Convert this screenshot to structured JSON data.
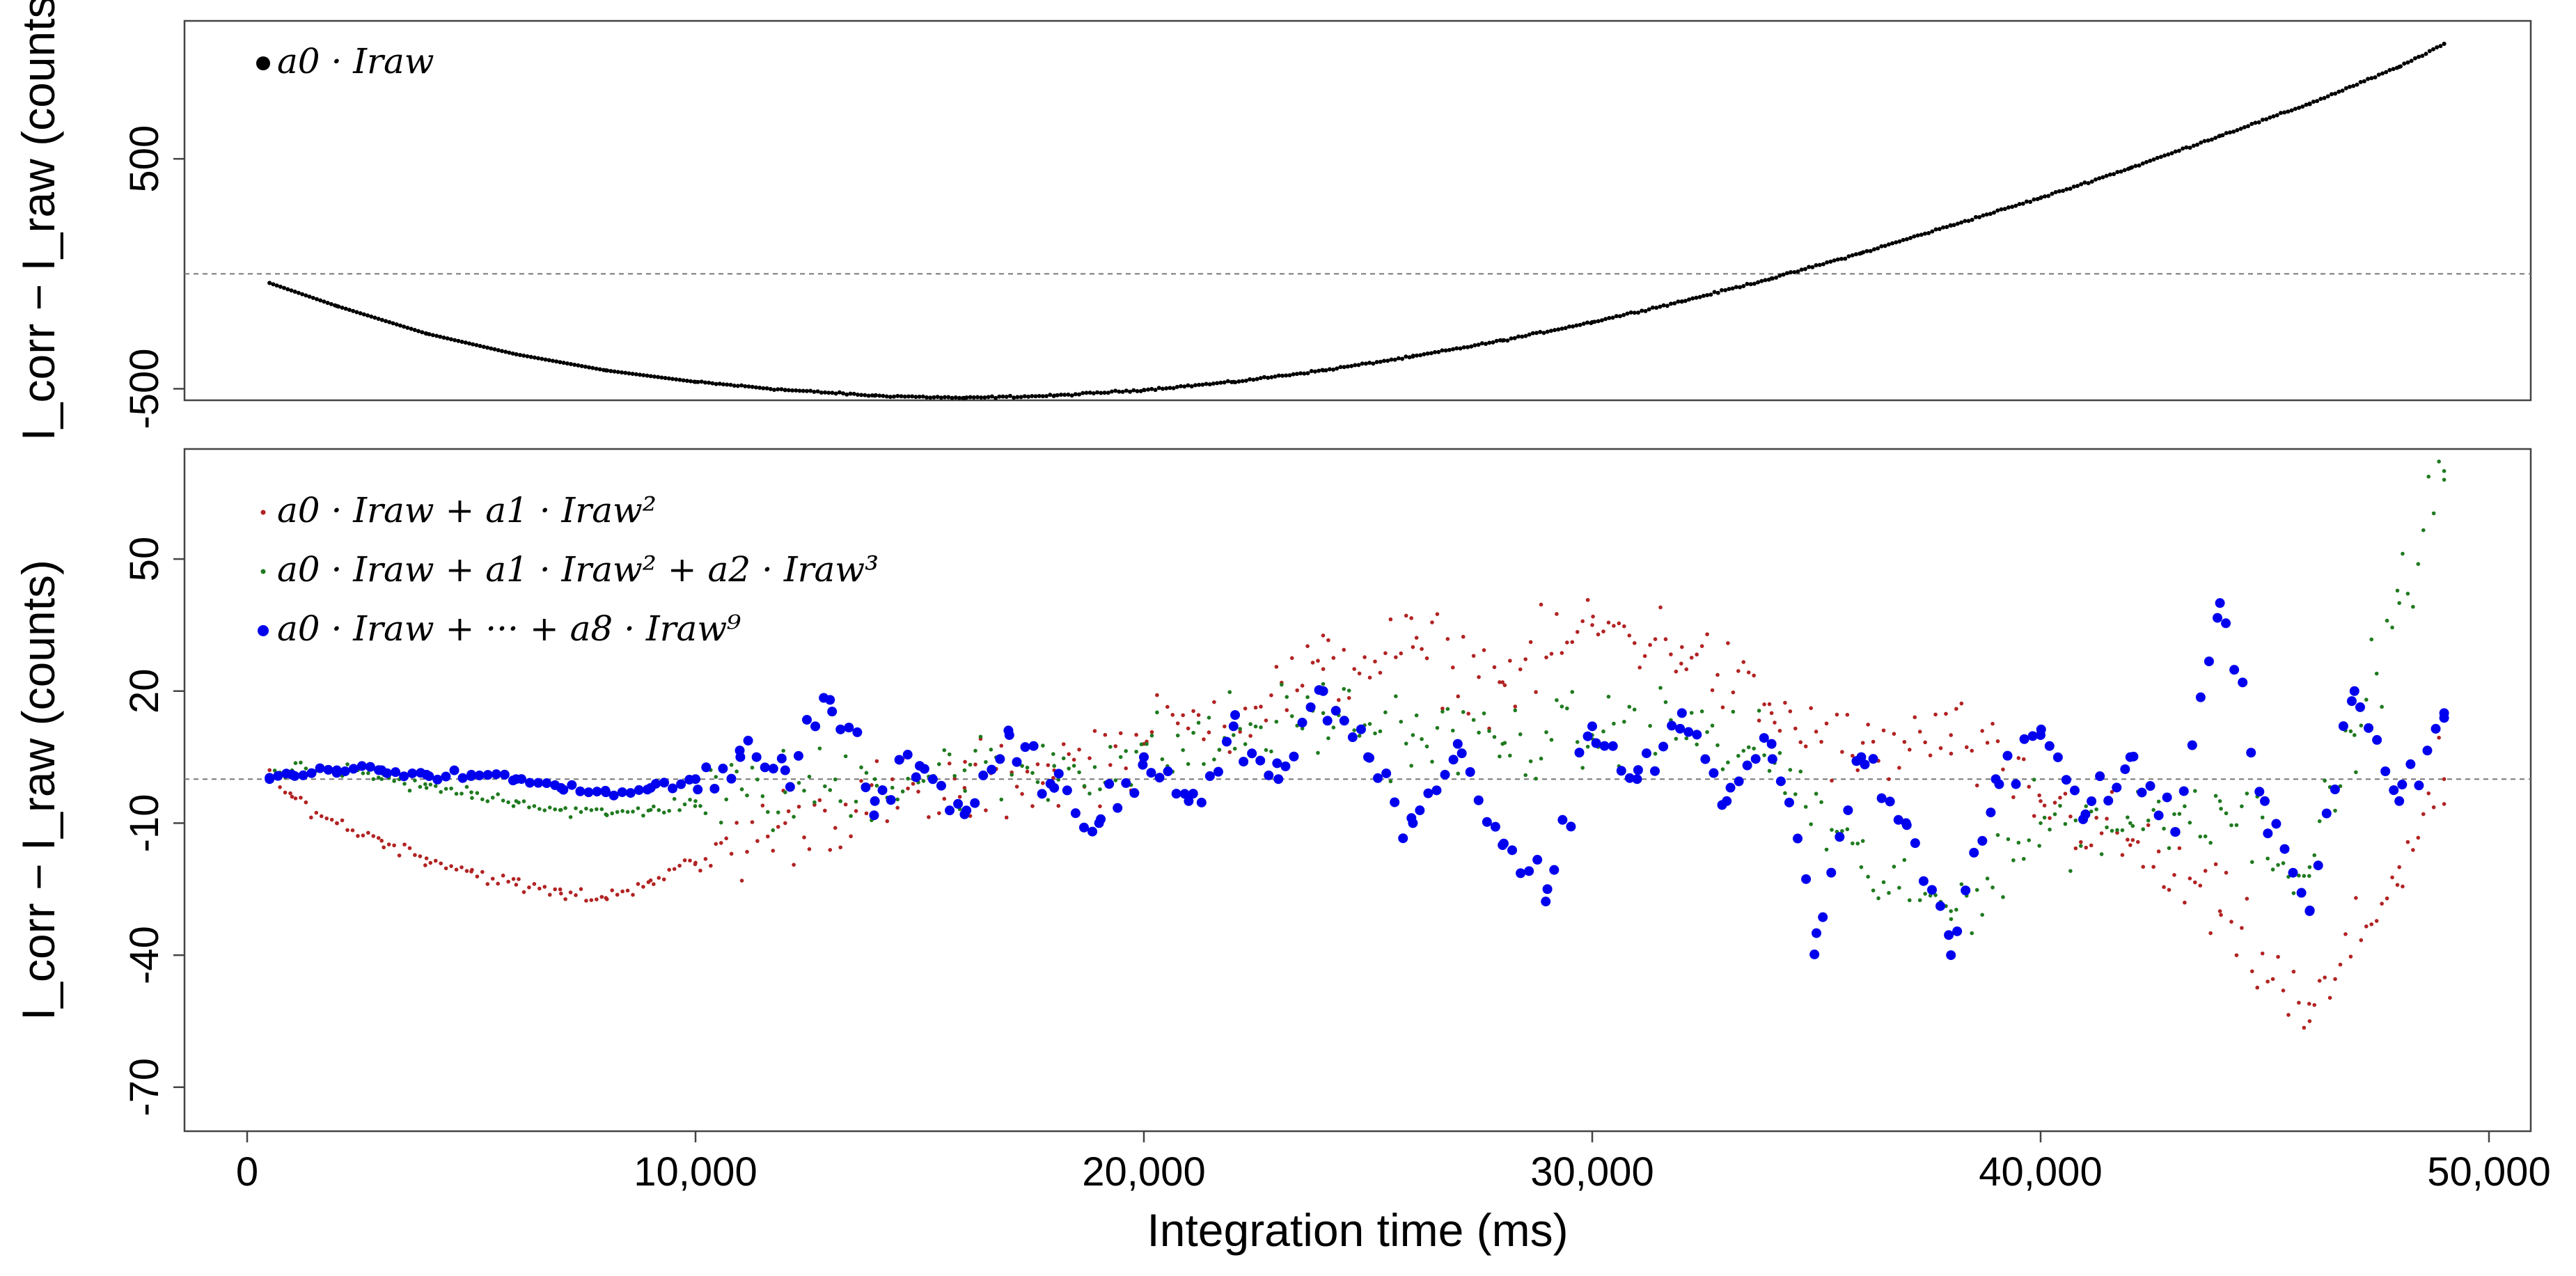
{
  "chart_data": [
    {
      "type": "scatter",
      "panel": "top",
      "ylabel": "I_corr − I_raw (counts)",
      "xlabel": "",
      "xlim": [
        -1000,
        51000
      ],
      "ylim": [
        -550,
        1100
      ],
      "y_ticks": [
        -500,
        500
      ],
      "y_tick_labels": [
        "-500",
        "500"
      ],
      "reference_line_y": 0,
      "grid": false,
      "legend": {
        "position": "top-left",
        "entries": [
          {
            "name": "a0 · Iraw",
            "color": "#000000",
            "marker": "dot"
          }
        ]
      },
      "series": [
        {
          "name": "a0 · Iraw",
          "color": "#000000",
          "description": "quadratic residual: starts near -50 at 500 ms, minimum about -540 near 16,000 ms, rises to about 1050 at 49,000 ms",
          "points": [
            [
              500,
              -40
            ],
            [
              2000,
              -140
            ],
            [
              4000,
              -260
            ],
            [
              6000,
              -350
            ],
            [
              8000,
              -420
            ],
            [
              10000,
              -470
            ],
            [
              12000,
              -505
            ],
            [
              14000,
              -530
            ],
            [
              16000,
              -540
            ],
            [
              18000,
              -530
            ],
            [
              20000,
              -505
            ],
            [
              22000,
              -470
            ],
            [
              24000,
              -420
            ],
            [
              26000,
              -360
            ],
            [
              28000,
              -290
            ],
            [
              30000,
              -210
            ],
            [
              32000,
              -120
            ],
            [
              34000,
              -20
            ],
            [
              36000,
              90
            ],
            [
              38000,
              210
            ],
            [
              40000,
              330
            ],
            [
              42000,
              460
            ],
            [
              44000,
              600
            ],
            [
              46000,
              740
            ],
            [
              48000,
              900
            ],
            [
              49000,
              1000
            ]
          ]
        }
      ]
    },
    {
      "type": "scatter",
      "panel": "bottom",
      "ylabel": "I_corr − I_raw (counts)",
      "xlabel": "Integration time (ms)",
      "xlim": [
        -1000,
        51000
      ],
      "ylim": [
        -80,
        75
      ],
      "y_ticks": [
        50,
        20,
        -10,
        -40,
        -70
      ],
      "y_tick_labels": [
        "50",
        "20",
        "-10",
        "-40",
        "-70"
      ],
      "x_ticks": [
        0,
        10000,
        20000,
        30000,
        40000,
        50000
      ],
      "x_tick_labels": [
        "0",
        "10,000",
        "20,000",
        "30,000",
        "40,000",
        "50,000"
      ],
      "reference_line_y": 0,
      "grid": false,
      "legend": {
        "position": "top-left",
        "entries": [
          {
            "name": "a0 · Iraw + a1 · Iraw²",
            "color": "#b22222",
            "marker": "dot"
          },
          {
            "name": "a0 · Iraw + a1 · Iraw² + a2 · Iraw³",
            "color": "#1f7a1f",
            "marker": "dot"
          },
          {
            "name": "a0 · Iraw + ··· + a8 · Iraw⁹",
            "color": "#0000ee",
            "marker": "dot"
          }
        ]
      },
      "series": [
        {
          "name": "a0 · Iraw + a1 · Iraw²",
          "color": "#b22222",
          "description": "dips to about -28 near 7,500 ms, then widely scattered between about -65 and +55",
          "points": [
            [
              500,
              0
            ],
            [
              1000,
              -4
            ],
            [
              2000,
              -10
            ],
            [
              3000,
              -14
            ],
            [
              4000,
              -18
            ],
            [
              5000,
              -21
            ],
            [
              6000,
              -24
            ],
            [
              7000,
              -26
            ],
            [
              8000,
              -27
            ],
            [
              9000,
              -23
            ],
            [
              10000,
              -19
            ],
            [
              12000,
              -10
            ],
            [
              14000,
              -5
            ],
            [
              16000,
              -2
            ],
            [
              18000,
              2
            ],
            [
              20000,
              8
            ],
            [
              22000,
              15
            ],
            [
              24000,
              25
            ],
            [
              26000,
              30
            ],
            [
              28000,
              22
            ],
            [
              30000,
              35
            ],
            [
              32000,
              30
            ],
            [
              34000,
              15
            ],
            [
              36000,
              5
            ],
            [
              38000,
              10
            ],
            [
              40000,
              -5
            ],
            [
              42000,
              -15
            ],
            [
              44000,
              -30
            ],
            [
              46000,
              -55
            ],
            [
              48000,
              -20
            ],
            [
              49000,
              0
            ]
          ]
        },
        {
          "name": "a0 · Iraw + a1 · Iraw² + a2 · Iraw³",
          "color": "#1f7a1f",
          "description": "small dip to about -8 near 8,000 ms, then moderate scatter, rising to about 70 near 49,000 ms",
          "points": [
            [
              500,
              0
            ],
            [
              1000,
              2
            ],
            [
              2000,
              2
            ],
            [
              3000,
              0
            ],
            [
              4000,
              -2
            ],
            [
              5000,
              -3
            ],
            [
              6000,
              -5
            ],
            [
              7000,
              -7
            ],
            [
              8000,
              -8
            ],
            [
              9000,
              -7
            ],
            [
              10000,
              -5
            ],
            [
              12000,
              -3
            ],
            [
              14000,
              0
            ],
            [
              16000,
              2
            ],
            [
              18000,
              3
            ],
            [
              20000,
              5
            ],
            [
              22000,
              10
            ],
            [
              24000,
              15
            ],
            [
              26000,
              10
            ],
            [
              28000,
              8
            ],
            [
              30000,
              10
            ],
            [
              32000,
              12
            ],
            [
              34000,
              5
            ],
            [
              36000,
              -20
            ],
            [
              38000,
              -30
            ],
            [
              40000,
              -10
            ],
            [
              42000,
              -10
            ],
            [
              44000,
              -5
            ],
            [
              46000,
              -20
            ],
            [
              47000,
              10
            ],
            [
              48000,
              40
            ],
            [
              49000,
              70
            ]
          ]
        },
        {
          "name": "a0 · Iraw + ··· + a8 · Iraw⁹",
          "color": "#0000ee",
          "description": "tight band near 0 up to 10,000 ms, then random scatter roughly between -40 and +40",
          "points": [
            [
              500,
              0
            ],
            [
              1000,
              1
            ],
            [
              2000,
              2
            ],
            [
              3000,
              2
            ],
            [
              4000,
              1
            ],
            [
              5000,
              1
            ],
            [
              6000,
              0
            ],
            [
              7000,
              -2
            ],
            [
              8000,
              -3
            ],
            [
              9000,
              -2
            ],
            [
              10000,
              0
            ],
            [
              11000,
              5
            ],
            [
              12000,
              2
            ],
            [
              13000,
              18
            ],
            [
              14000,
              -5
            ],
            [
              15000,
              3
            ],
            [
              16000,
              -8
            ],
            [
              17000,
              10
            ],
            [
              18000,
              -2
            ],
            [
              19000,
              -10
            ],
            [
              20000,
              5
            ],
            [
              21000,
              -5
            ],
            [
              22000,
              12
            ],
            [
              23000,
              0
            ],
            [
              24000,
              20
            ],
            [
              25000,
              5
            ],
            [
              26000,
              -10
            ],
            [
              27000,
              8
            ],
            [
              28000,
              -15
            ],
            [
              29000,
              -25
            ],
            [
              30000,
              12
            ],
            [
              31000,
              0
            ],
            [
              32000,
              15
            ],
            [
              33000,
              -5
            ],
            [
              34000,
              8
            ],
            [
              35000,
              -35
            ],
            [
              36000,
              5
            ],
            [
              37000,
              -10
            ],
            [
              38000,
              -40
            ],
            [
              39000,
              0
            ],
            [
              40000,
              10
            ],
            [
              41000,
              -8
            ],
            [
              42000,
              5
            ],
            [
              43000,
              -12
            ],
            [
              44000,
              40
            ],
            [
              45000,
              -5
            ],
            [
              46000,
              -30
            ],
            [
              47000,
              20
            ],
            [
              48000,
              -5
            ],
            [
              49000,
              15
            ]
          ]
        }
      ]
    }
  ]
}
